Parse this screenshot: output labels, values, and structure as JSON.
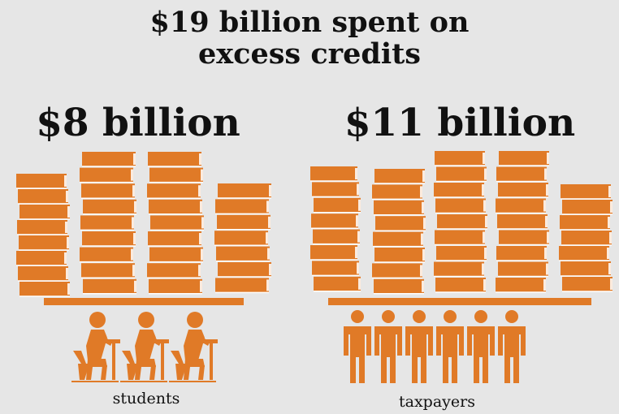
{
  "title_line1": "$19 billion spent on",
  "title_line2": "excess credits",
  "groups": [
    {
      "amount": "$8 billion",
      "label": "students",
      "icon": "student-at-desk-icon",
      "icon_count": 3
    },
    {
      "amount": "$11 billion",
      "label": "taxpayers",
      "icon": "person-icon",
      "icon_count": 6
    }
  ],
  "colors": {
    "accent": "#e07a27",
    "background": "#e6e6e6",
    "text": "#111111"
  }
}
